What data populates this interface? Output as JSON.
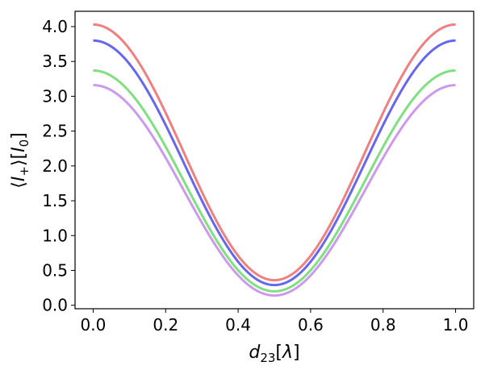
{
  "chart_data": {
    "type": "line",
    "title": "",
    "xlabel": "d₂₃[λ]",
    "ylabel": "⟨I₊⟩[I₀]",
    "xlim": [
      -0.05,
      1.05
    ],
    "ylim": [
      -0.05,
      4.22
    ],
    "xticks": [
      "0.0",
      "0.2",
      "0.4",
      "0.6",
      "0.8",
      "1.0"
    ],
    "yticks": [
      "0.0",
      "0.5",
      "1.0",
      "1.5",
      "2.0",
      "2.5",
      "3.0",
      "3.5",
      "4.0"
    ],
    "grid": false,
    "legend": "none",
    "model": "y = min + (max - min) * cos²(π x)",
    "x_range": [
      0.0,
      1.0
    ],
    "series": [
      {
        "color": "#f08080",
        "max": 4.03,
        "min": 0.36
      },
      {
        "color": "#6666ee",
        "max": 3.8,
        "min": 0.29
      },
      {
        "color": "#80e080",
        "max": 3.37,
        "min": 0.2
      },
      {
        "color": "#cc99ee",
        "max": 3.16,
        "min": 0.14
      }
    ]
  }
}
